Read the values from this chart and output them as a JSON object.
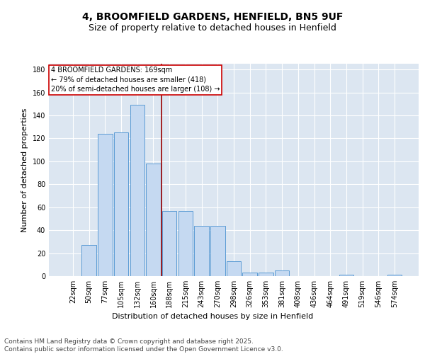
{
  "title_line1": "4, BROOMFIELD GARDENS, HENFIELD, BN5 9UF",
  "title_line2": "Size of property relative to detached houses in Henfield",
  "xlabel": "Distribution of detached houses by size in Henfield",
  "ylabel": "Number of detached properties",
  "categories": [
    "22sqm",
    "50sqm",
    "77sqm",
    "105sqm",
    "132sqm",
    "160sqm",
    "188sqm",
    "215sqm",
    "243sqm",
    "270sqm",
    "298sqm",
    "326sqm",
    "353sqm",
    "381sqm",
    "408sqm",
    "436sqm",
    "464sqm",
    "491sqm",
    "519sqm",
    "546sqm",
    "574sqm"
  ],
  "values": [
    0,
    27,
    124,
    125,
    149,
    98,
    57,
    57,
    44,
    44,
    13,
    3,
    3,
    5,
    0,
    0,
    0,
    1,
    0,
    0,
    1
  ],
  "bar_color": "#c5d9f1",
  "bar_edge_color": "#5b9bd5",
  "vline_color": "#990000",
  "annotation_text": "4 BROOMFIELD GARDENS: 169sqm\n← 79% of detached houses are smaller (418)\n20% of semi-detached houses are larger (108) →",
  "annotation_box_edge_color": "#cc0000",
  "annotation_text_color": "#000000",
  "ylim": [
    0,
    185
  ],
  "yticks": [
    0,
    20,
    40,
    60,
    80,
    100,
    120,
    140,
    160,
    180
  ],
  "background_color": "#dce6f1",
  "grid_color": "#ffffff",
  "footer_line1": "Contains HM Land Registry data © Crown copyright and database right 2025.",
  "footer_line2": "Contains public sector information licensed under the Open Government Licence v3.0.",
  "title_fontsize": 10,
  "subtitle_fontsize": 9,
  "axis_label_fontsize": 8,
  "tick_fontsize": 7,
  "annotation_fontsize": 7,
  "footer_fontsize": 6.5
}
